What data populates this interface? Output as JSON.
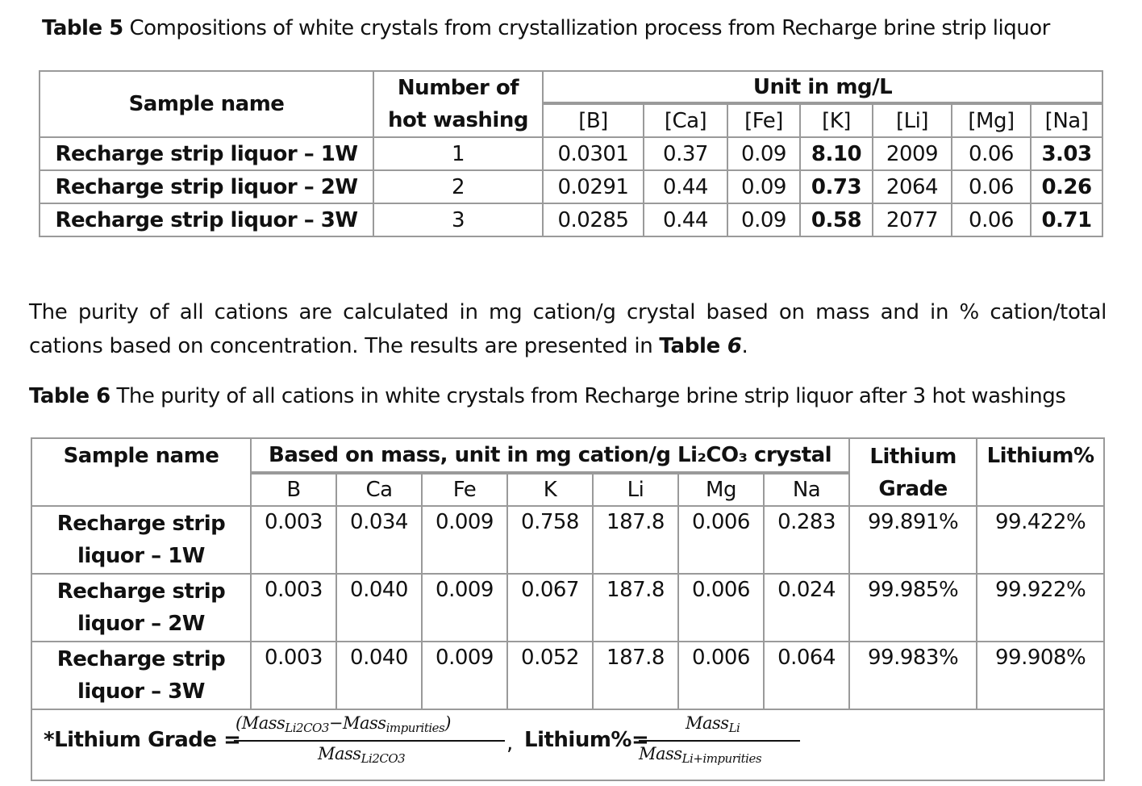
{
  "table5": {
    "caption_bold": "Table 5",
    "caption_text": " Compositions of white crystals from crystallization process from Recharge brine strip liquor",
    "headers": {
      "sample_name": "Sample name",
      "hot_washing_line1": "Number of",
      "hot_washing_line2": "hot washing",
      "unit": "Unit in mg/L",
      "elements": [
        "[B]",
        "[Ca]",
        "[Fe]",
        "[K]",
        "[Li]",
        "[Mg]",
        "[Na]"
      ]
    },
    "rows": [
      {
        "sample": "Recharge strip liquor – 1W",
        "washing": "1",
        "values": [
          "0.0301",
          "0.37",
          "0.09",
          "8.10",
          "2009",
          "0.06",
          "3.03"
        ]
      },
      {
        "sample": "Recharge strip liquor – 2W",
        "washing": "2",
        "values": [
          "0.0291",
          "0.44",
          "0.09",
          "0.73",
          "2064",
          "0.06",
          "0.26"
        ]
      },
      {
        "sample": "Recharge strip liquor – 3W",
        "washing": "3",
        "values": [
          "0.0285",
          "0.44",
          "0.09",
          "0.58",
          "2077",
          "0.06",
          "0.71"
        ]
      }
    ]
  },
  "paragraph": {
    "text_before": "The purity of all cations are calculated in mg cation/g crystal based on mass and in % cation/total cations based on concentration. The results are presented in ",
    "ref_bold": "Table ",
    "ref_italic": "6",
    "text_after": "."
  },
  "table6": {
    "caption_bold": "Table 6",
    "caption_text": " The purity of all cations in white crystals from Recharge brine strip liquor after 3 hot washings",
    "headers": {
      "sample_name": "Sample name",
      "mass_header": "Based on mass, unit in mg cation/g Li₂CO₃ crystal",
      "lithium_grade_line1": "Lithium",
      "lithium_grade_line2": "Grade",
      "lithium_pct": "Lithium%",
      "elements": [
        "B",
        "Ca",
        "Fe",
        "K",
        "Li",
        "Mg",
        "Na"
      ]
    },
    "rows": [
      {
        "sample_line1": "Recharge strip",
        "sample_line2": "liquor – 1W",
        "values": [
          "0.003",
          "0.034",
          "0.009",
          "0.758",
          "187.8",
          "0.006",
          "0.283"
        ],
        "grade": "99.891%",
        "pct": "99.422%"
      },
      {
        "sample_line1": "Recharge strip",
        "sample_line2": "liquor – 2W",
        "values": [
          "0.003",
          "0.040",
          "0.009",
          "0.067",
          "187.8",
          "0.006",
          "0.024"
        ],
        "grade": "99.985%",
        "pct": "99.922%"
      },
      {
        "sample_line1": "Recharge strip",
        "sample_line2": "liquor – 3W",
        "values": [
          "0.003",
          "0.040",
          "0.009",
          "0.052",
          "187.8",
          "0.006",
          "0.064"
        ],
        "grade": "99.983%",
        "pct": "99.908%"
      }
    ],
    "footnote": {
      "grade_label": "*Lithium Grade =",
      "grade_num_a": "(Mass",
      "grade_num_a_sub": "Li2CO3",
      "grade_num_b": "−Mass",
      "grade_num_b_sub": "impurities",
      "grade_num_c": ")",
      "grade_den": "Mass",
      "grade_den_sub": "Li2CO3",
      "comma": ",",
      "pct_label": "Lithium%=",
      "pct_num": "Mass",
      "pct_num_sub": "Li",
      "pct_den": "Mass",
      "pct_den_sub": "Li+impurities"
    }
  }
}
